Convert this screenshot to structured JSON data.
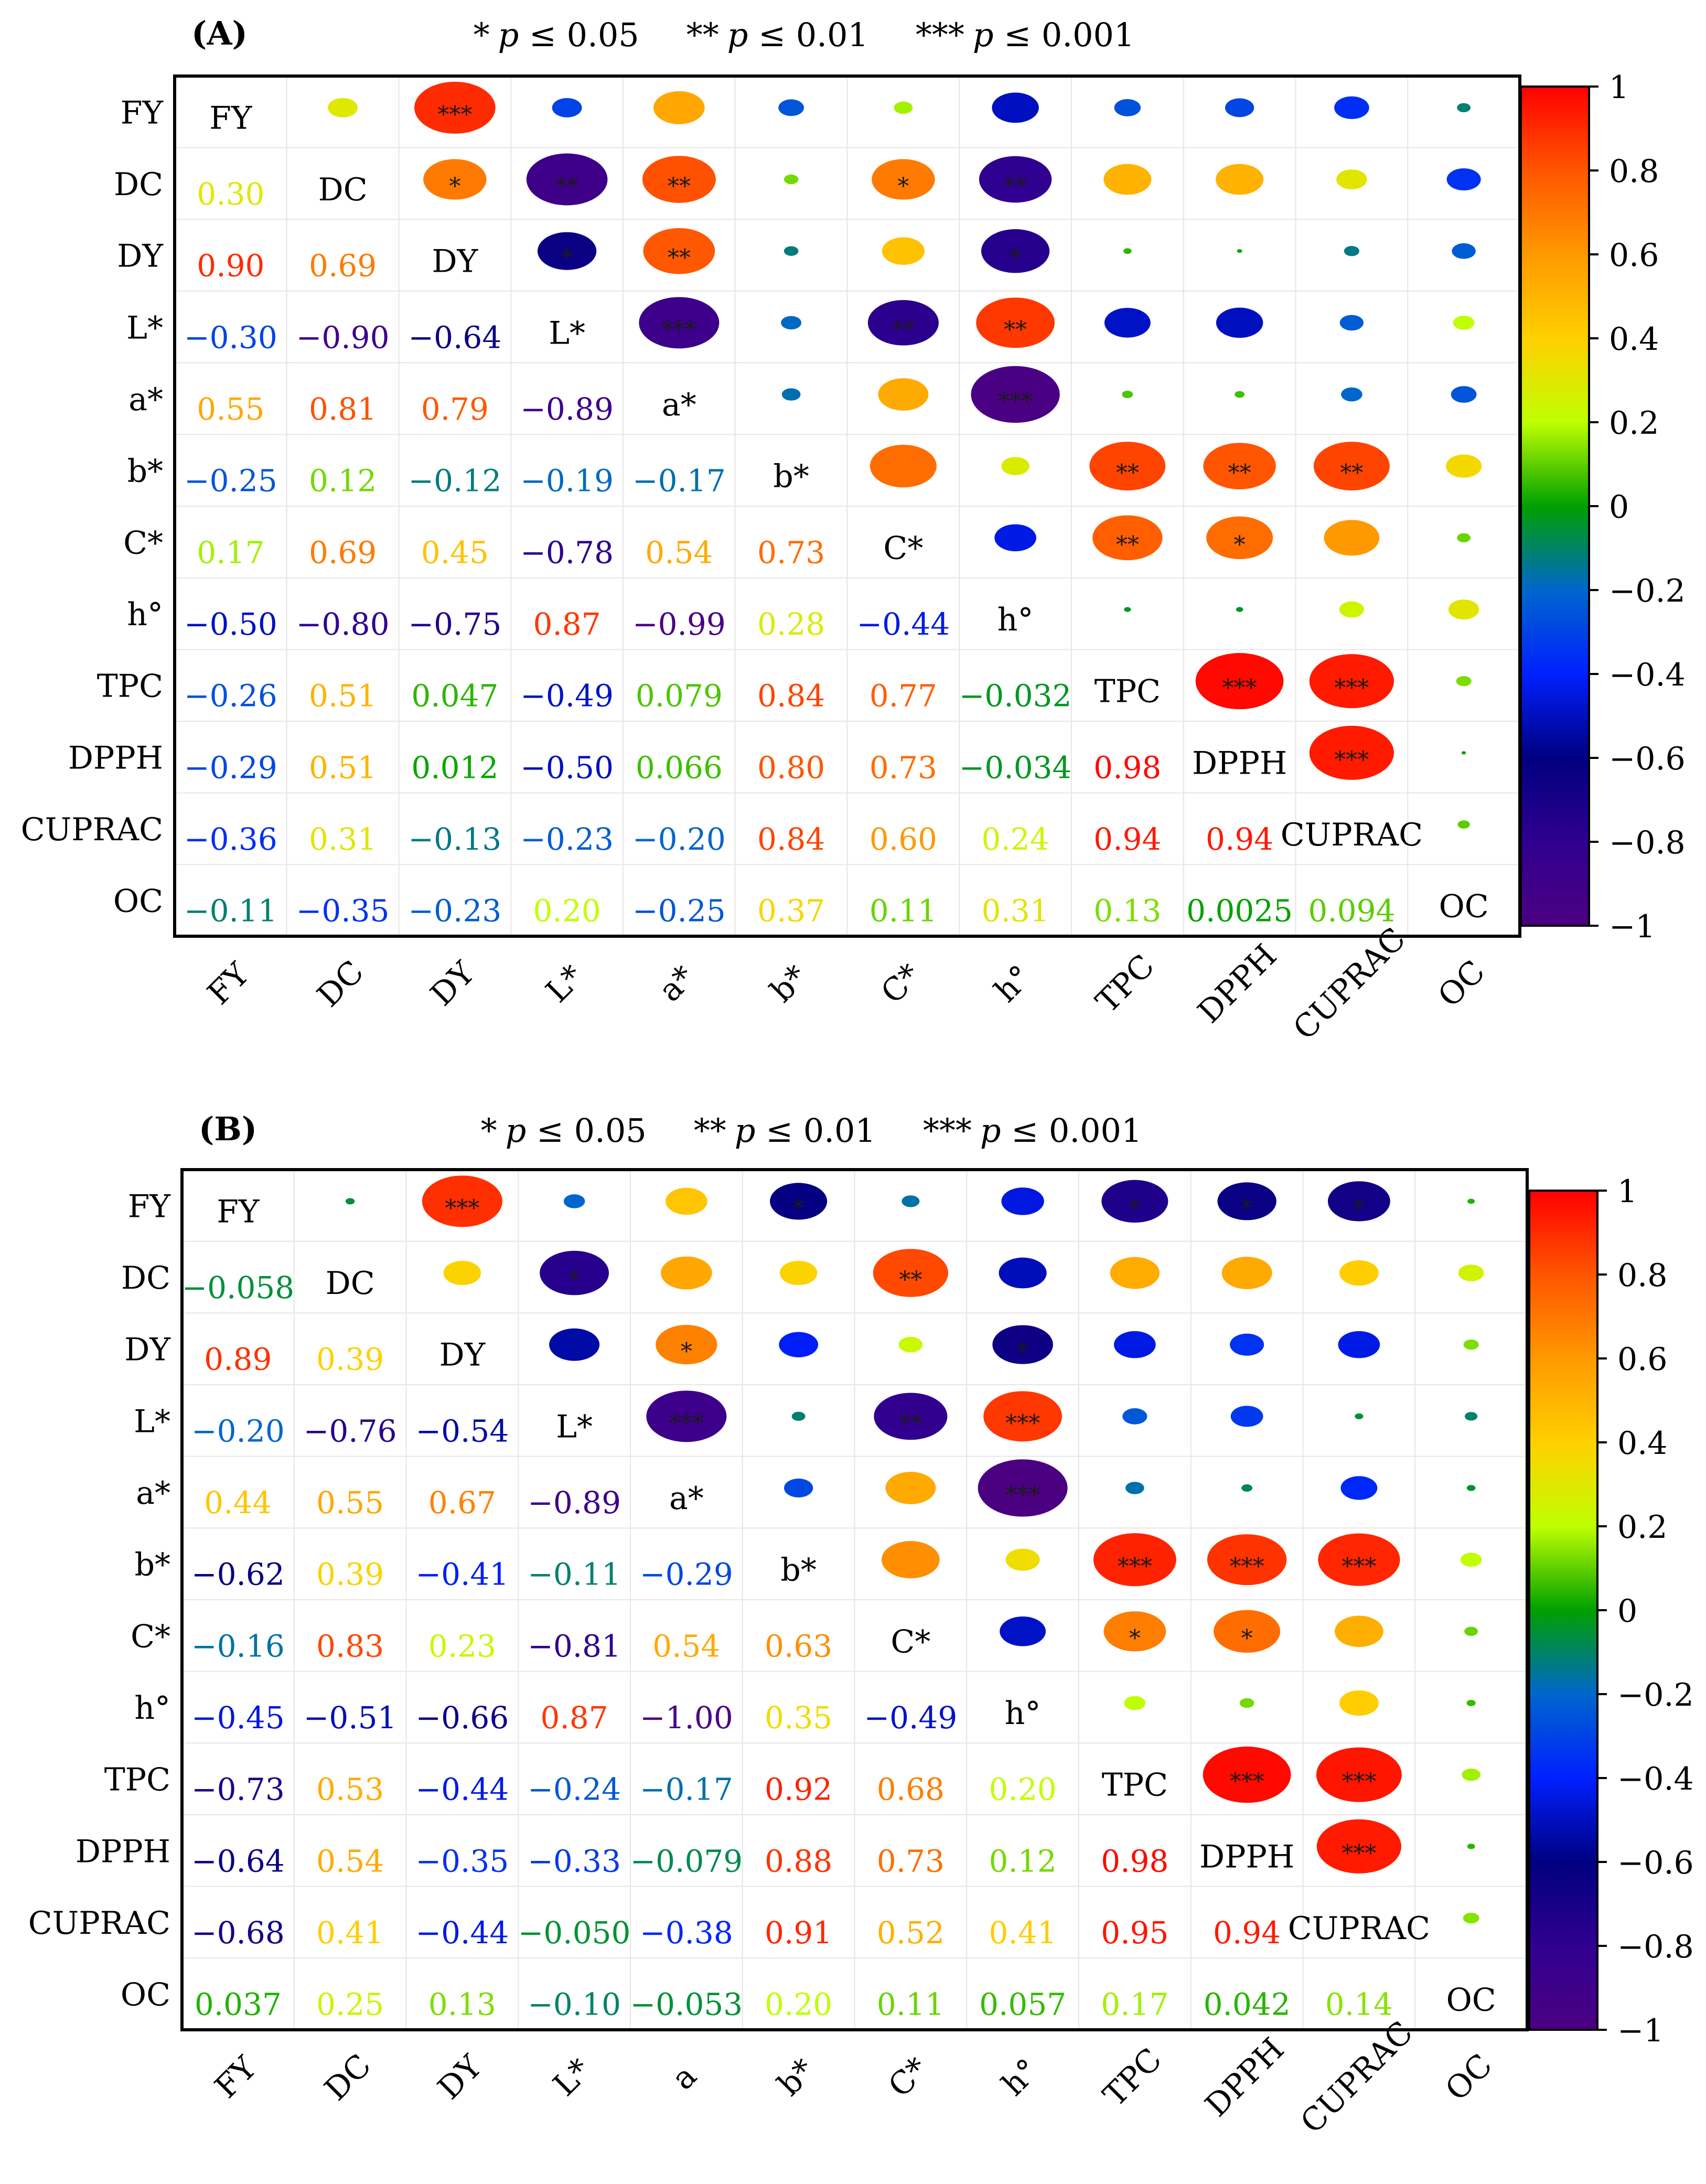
{
  "variables": [
    "FY",
    "DC",
    "DY",
    "L*",
    "a*",
    "b*",
    "C*",
    "h°",
    "TPC",
    "DPPH",
    "CUPRAC",
    "OC"
  ],
  "colors": {
    "frame": "#000000",
    "grid": "#e6e6e6",
    "stars": "#1a1a1a",
    "label": "#000000"
  },
  "chart_data": [
    {
      "type": "heatmap",
      "panel_label": "A",
      "significance_legend": {
        "s1": {
          "stars": "*",
          "p": "p",
          "rel": " ≤ 0.05"
        },
        "s2": {
          "stars": "**",
          "p": "p",
          "rel": " ≤ 0.01"
        },
        "s3": {
          "stars": "***",
          "p": "p",
          "rel": " ≤ 0.001"
        }
      },
      "row_labels": [
        "FY",
        "DC",
        "DY",
        "L*",
        "a*",
        "b*",
        "C*",
        "h°",
        "TPC",
        "DPPH",
        "CUPRAC",
        "OC"
      ],
      "column_labels": [
        "FY",
        "DC",
        "DY",
        "L*",
        "a*",
        "b*",
        "C*",
        "h°",
        "TPC",
        "DPPH",
        "CUPRAC",
        "OC"
      ],
      "lower_triangle_text": [
        [],
        [
          "0.30"
        ],
        [
          "0.90",
          "0.69"
        ],
        [
          "−0.30",
          "−0.90",
          "−0.64"
        ],
        [
          "0.55",
          "0.81",
          "0.79",
          "−0.89"
        ],
        [
          "−0.25",
          "0.12",
          "−0.12",
          "−0.19",
          "−0.17"
        ],
        [
          "0.17",
          "0.69",
          "0.45",
          "−0.78",
          "0.54",
          "0.73"
        ],
        [
          "−0.50",
          "−0.80",
          "−0.75",
          "0.87",
          "−0.99",
          "0.28",
          "−0.44"
        ],
        [
          "−0.26",
          "0.51",
          "0.047",
          "−0.49",
          "0.079",
          "0.84",
          "0.77",
          "−0.032"
        ],
        [
          "−0.29",
          "0.51",
          "0.012",
          "−0.50",
          "0.066",
          "0.80",
          "0.73",
          "−0.034",
          "0.98"
        ],
        [
          "−0.36",
          "0.31",
          "−0.13",
          "−0.23",
          "−0.20",
          "0.84",
          "0.60",
          "0.24",
          "0.94",
          "0.94"
        ],
        [
          "−0.11",
          "−0.35",
          "−0.23",
          "0.20",
          "−0.25",
          "0.37",
          "0.11",
          "0.31",
          "0.13",
          "0.0025",
          "0.094"
        ]
      ],
      "significance_stars": [
        [],
        [
          ""
        ],
        [
          "***",
          "*"
        ],
        [
          "",
          "**",
          "*"
        ],
        [
          "",
          "**",
          "**",
          "***"
        ],
        [
          "",
          "",
          "",
          "",
          ""
        ],
        [
          "",
          "*",
          "",
          "**",
          "",
          ""
        ],
        [
          "",
          "**",
          "*",
          "**",
          "***",
          "",
          ""
        ],
        [
          "",
          "",
          "",
          "",
          "",
          "**",
          "**",
          ""
        ],
        [
          "",
          "",
          "",
          "",
          "",
          "**",
          "*",
          "",
          "***"
        ],
        [
          "",
          "",
          "",
          "",
          "",
          "**",
          "",
          "",
          "***",
          "***"
        ],
        [
          "",
          "",
          "",
          "",
          "",
          "",
          "",
          "",
          "",
          "",
          ""
        ]
      ],
      "colorbar": {
        "range": [
          -1,
          1
        ],
        "ticks": [
          "1",
          "0.8",
          "0.6",
          "0.4",
          "0.2",
          "0",
          "−0.2",
          "−0.4",
          "−0.6",
          "−0.8",
          "−1"
        ]
      }
    },
    {
      "type": "heatmap",
      "panel_label": "B",
      "significance_legend": {
        "s1": {
          "stars": "*",
          "p": "p",
          "rel": " ≤ 0.05"
        },
        "s2": {
          "stars": "**",
          "p": "p",
          "rel": " ≤ 0.01"
        },
        "s3": {
          "stars": "***",
          "p": "p",
          "rel": " ≤ 0.001"
        }
      },
      "row_labels": [
        "FY",
        "DC",
        "DY",
        "L*",
        "a*",
        "b*",
        "C*",
        "h°",
        "TPC",
        "DPPH",
        "CUPRAC",
        "OC"
      ],
      "column_labels": [
        "FY",
        "DC",
        "DY",
        "L*",
        "a",
        "b*",
        "C*",
        "h°",
        "TPC",
        "DPPH",
        "CUPRAC",
        "OC"
      ],
      "lower_triangle_text": [
        [],
        [
          "−0.058"
        ],
        [
          "0.89",
          "0.39"
        ],
        [
          "−0.20",
          "−0.76",
          "−0.54"
        ],
        [
          "0.44",
          "0.55",
          "0.67",
          "−0.89"
        ],
        [
          "−0.62",
          "0.39",
          "−0.41",
          "−0.11",
          "−0.29"
        ],
        [
          "−0.16",
          "0.83",
          "0.23",
          "−0.81",
          "0.54",
          "0.63"
        ],
        [
          "−0.45",
          "−0.51",
          "−0.66",
          "0.87",
          "−1.00",
          "0.35",
          "−0.49"
        ],
        [
          "−0.73",
          "0.53",
          "−0.44",
          "−0.24",
          "−0.17",
          "0.92",
          "0.68",
          "0.20"
        ],
        [
          "−0.64",
          "0.54",
          "−0.35",
          "−0.33",
          "−0.079",
          "0.88",
          "0.73",
          "0.12",
          "0.98"
        ],
        [
          "−0.68",
          "0.41",
          "−0.44",
          "−0.050",
          "−0.38",
          "0.91",
          "0.52",
          "0.41",
          "0.95",
          "0.94"
        ],
        [
          "0.037",
          "0.25",
          "0.13",
          "−0.10",
          "−0.053",
          "0.20",
          "0.11",
          "0.057",
          "0.17",
          "0.042",
          "0.14"
        ]
      ],
      "significance_stars": [
        [],
        [
          ""
        ],
        [
          "***",
          ""
        ],
        [
          "",
          "*",
          ""
        ],
        [
          "",
          "",
          "*",
          "***"
        ],
        [
          "*",
          "",
          "",
          "",
          ""
        ],
        [
          "",
          "**",
          "",
          "**",
          "",
          ""
        ],
        [
          "",
          "",
          "*",
          "***",
          "***",
          "",
          ""
        ],
        [
          "*",
          "",
          "",
          "",
          "",
          "***",
          "*",
          ""
        ],
        [
          "*",
          "",
          "",
          "",
          "",
          "***",
          "*",
          "",
          "***"
        ],
        [
          "*",
          "",
          "",
          "",
          "",
          "***",
          "",
          "",
          "***",
          "***"
        ],
        [
          "",
          "",
          "",
          "",
          "",
          "",
          "",
          "",
          "",
          "",
          ""
        ]
      ],
      "colorbar": {
        "range": [
          -1,
          1
        ],
        "ticks": [
          "1",
          "0.8",
          "0.6",
          "0.4",
          "0.2",
          "0",
          "−0.2",
          "−0.4",
          "−0.6",
          "−0.8",
          "−1"
        ]
      }
    }
  ]
}
